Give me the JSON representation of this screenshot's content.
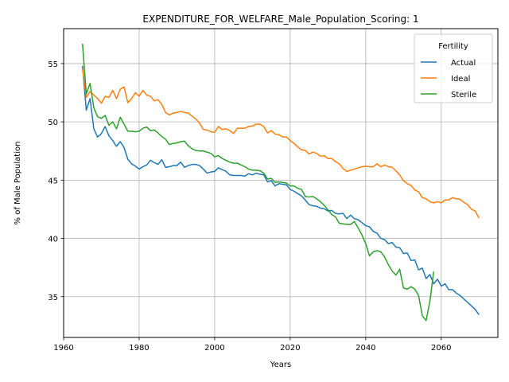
{
  "chart_data": {
    "type": "line",
    "title": "EXPENDITURE_FOR_WELFARE_Male_Population_Scoring: 1",
    "xlabel": "Years",
    "ylabel": "% of Male Population",
    "xlim": [
      1960,
      2075
    ],
    "ylim": [
      31.5,
      58
    ],
    "xticks": [
      1960,
      1980,
      2000,
      2020,
      2040,
      2060
    ],
    "yticks": [
      35,
      40,
      45,
      50,
      55
    ],
    "grid": true,
    "legend": {
      "title": "Fertility",
      "position": "top-right"
    },
    "x": [
      1965,
      1966,
      1967,
      1968,
      1969,
      1970,
      1971,
      1972,
      1973,
      1974,
      1975,
      1976,
      1977,
      1978,
      1979,
      1980,
      1981,
      1982,
      1983,
      1984,
      1985,
      1986,
      1987,
      1988,
      1989,
      1990,
      1991,
      1992,
      1993,
      1994,
      1995,
      1996,
      1997,
      1998,
      1999,
      2000,
      2001,
      2002,
      2003,
      2004,
      2005,
      2006,
      2007,
      2008,
      2009,
      2010,
      2011,
      2012,
      2013,
      2014,
      2015,
      2016,
      2017,
      2018,
      2019,
      2020,
      2021,
      2022,
      2023,
      2024,
      2025,
      2026,
      2027,
      2028,
      2029,
      2030,
      2031,
      2032,
      2033,
      2034,
      2035,
      2036,
      2037,
      2038,
      2039,
      2040,
      2041,
      2042,
      2043,
      2044,
      2045,
      2046,
      2047,
      2048,
      2049,
      2050,
      2051,
      2052,
      2053,
      2054,
      2055,
      2056,
      2057,
      2058,
      2059,
      2060,
      2061,
      2062,
      2063,
      2064,
      2065,
      2066,
      2067,
      2068,
      2069,
      2070
    ],
    "series": [
      {
        "name": "Actual",
        "color": "#1f77b4",
        "values": [
          54.8,
          51.0,
          52.0,
          49.4,
          48.7,
          49.0,
          49.6,
          48.8,
          48.4,
          47.9,
          48.3,
          47.8,
          46.8,
          46.4,
          46.2,
          45.95,
          46.15,
          46.3,
          46.7,
          46.5,
          46.35,
          46.75,
          46.1,
          46.15,
          46.25,
          46.25,
          46.55,
          46.1,
          46.25,
          46.35,
          46.35,
          46.25,
          45.95,
          45.6,
          45.7,
          45.75,
          46.05,
          45.9,
          45.75,
          45.45,
          45.4,
          45.4,
          45.4,
          45.35,
          45.55,
          45.45,
          45.6,
          45.5,
          45.45,
          44.85,
          44.95,
          44.5,
          44.7,
          44.65,
          44.6,
          44.2,
          44.05,
          43.85,
          43.65,
          43.3,
          42.9,
          42.8,
          42.75,
          42.6,
          42.55,
          42.35,
          42.4,
          42.15,
          42.1,
          42.15,
          41.7,
          42.0,
          41.7,
          41.6,
          41.35,
          41.1,
          41.0,
          40.6,
          40.45,
          40.0,
          39.9,
          39.55,
          39.65,
          39.25,
          39.2,
          38.7,
          38.75,
          38.1,
          38.15,
          37.3,
          37.45,
          36.55,
          36.9,
          36.1,
          36.5,
          35.9,
          36.1,
          35.6,
          35.6,
          35.3,
          35.1,
          34.8,
          34.5,
          34.2,
          33.9,
          33.45
        ]
      },
      {
        "name": "Ideal",
        "color": "#ff7f0e",
        "values": [
          54.6,
          52.1,
          52.6,
          52.3,
          52.0,
          51.6,
          52.2,
          52.1,
          52.7,
          52.0,
          52.8,
          53.0,
          51.65,
          52.0,
          52.5,
          52.2,
          52.7,
          52.3,
          52.2,
          51.8,
          51.9,
          51.5,
          50.8,
          50.6,
          50.75,
          50.8,
          50.9,
          50.8,
          50.75,
          50.5,
          50.25,
          49.9,
          49.35,
          49.3,
          49.15,
          49.1,
          49.6,
          49.35,
          49.4,
          49.25,
          49.0,
          49.45,
          49.45,
          49.45,
          49.6,
          49.65,
          49.8,
          49.8,
          49.6,
          49.05,
          49.25,
          48.95,
          48.9,
          48.7,
          48.7,
          48.4,
          48.15,
          47.85,
          47.6,
          47.55,
          47.25,
          47.4,
          47.3,
          47.05,
          47.1,
          46.85,
          46.85,
          46.6,
          46.4,
          46.0,
          45.75,
          45.85,
          45.95,
          46.05,
          46.15,
          46.2,
          46.15,
          46.15,
          46.4,
          46.15,
          46.3,
          46.15,
          46.1,
          45.8,
          45.45,
          44.95,
          44.7,
          44.55,
          44.15,
          44.0,
          43.5,
          43.4,
          43.15,
          43.05,
          43.15,
          43.05,
          43.3,
          43.3,
          43.5,
          43.4,
          43.35,
          43.1,
          42.9,
          42.5,
          42.35,
          41.75
        ]
      },
      {
        "name": "Sterile",
        "color": "#2ca02c",
        "values": [
          56.7,
          52.4,
          53.3,
          51.2,
          50.45,
          50.3,
          50.55,
          49.7,
          50.0,
          49.4,
          50.4,
          49.8,
          49.2,
          49.2,
          49.15,
          49.2,
          49.45,
          49.55,
          49.25,
          49.3,
          49.05,
          48.75,
          48.5,
          48.05,
          48.15,
          48.2,
          48.3,
          48.35,
          47.95,
          47.7,
          47.55,
          47.5,
          47.5,
          47.4,
          47.3,
          47.0,
          47.1,
          46.85,
          46.7,
          46.55,
          46.45,
          46.45,
          46.3,
          46.15,
          45.95,
          45.85,
          45.85,
          45.8,
          45.6,
          45.1,
          45.15,
          44.8,
          44.85,
          44.8,
          44.75,
          44.5,
          44.5,
          44.3,
          44.2,
          43.6,
          43.55,
          43.6,
          43.4,
          43.15,
          42.85,
          42.45,
          42.05,
          41.85,
          41.3,
          41.25,
          41.2,
          41.2,
          41.45,
          40.9,
          40.3,
          39.55,
          38.5,
          38.85,
          38.95,
          38.85,
          38.4,
          37.75,
          37.2,
          36.85,
          37.35,
          35.75,
          35.65,
          35.85,
          35.65,
          35.1,
          33.35,
          32.95,
          34.6,
          37.15,
          null,
          null,
          null,
          null,
          null,
          null,
          null,
          null,
          null,
          null,
          null,
          null
        ]
      }
    ]
  }
}
